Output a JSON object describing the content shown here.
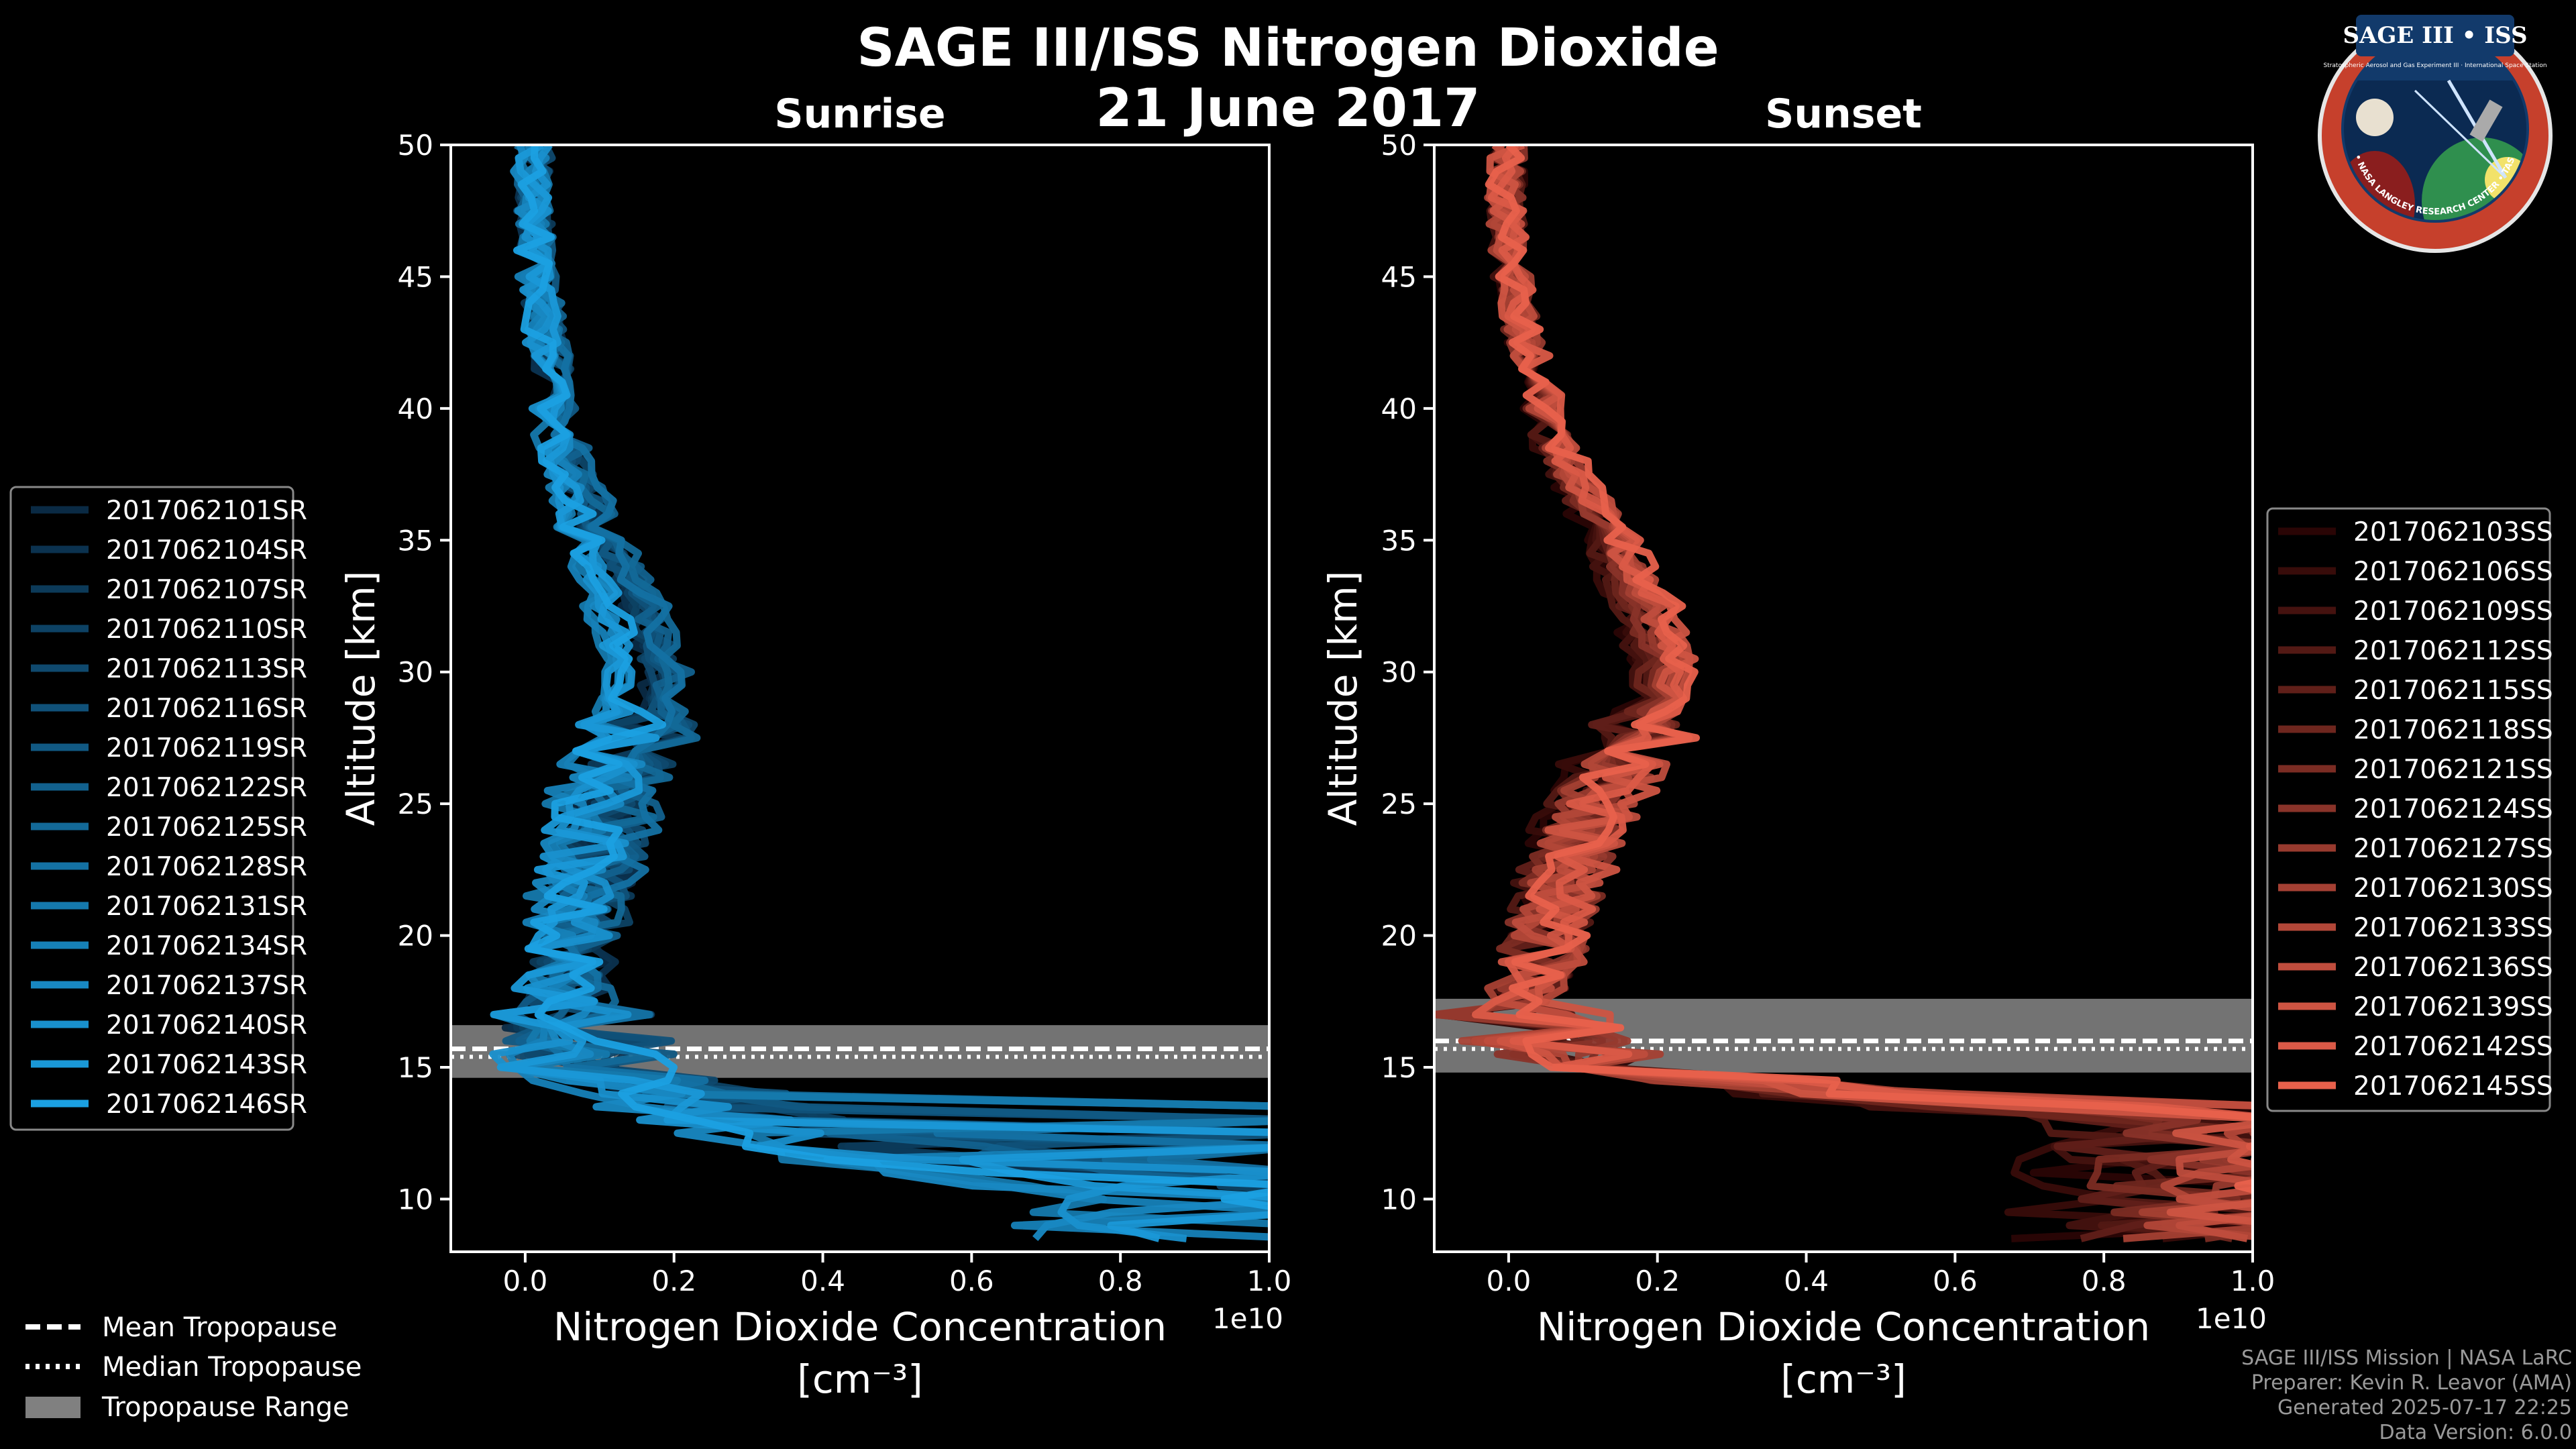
{
  "title": "SAGE III/ISS Nitrogen Dioxide",
  "date": "21 June 2017",
  "logo": {
    "name": "SAGE III • ISS",
    "subtitle": "Stratospheric Aerosol and Gas Experiment III · International Space Station",
    "ring_text": "BALL • NASA LANGLEY RESEARCH CENTER • TAS • ESA"
  },
  "credits": [
    "SAGE III/ISS Mission | NASA LaRC",
    "Preparer: Kevin R. Leavor (AMA)",
    "Generated 2025-07-17 22:25",
    "Data Version: 6.0.0"
  ],
  "tropopause_legend": [
    {
      "label": "Mean Tropopause",
      "style": "dashed"
    },
    {
      "label": "Median Tropopause",
      "style": "dotted"
    },
    {
      "label": "Tropopause Range",
      "style": "patch"
    }
  ],
  "chart_data": [
    {
      "type": "line",
      "panel": "Sunrise",
      "title": "Sunrise",
      "xlabel": "Nitrogen Dioxide Concentration",
      "xlabel_unit": "[cm⁻³]",
      "ylabel": "Altitude [km]",
      "xlim": [
        -0.1,
        1.0
      ],
      "ylim": [
        8,
        50
      ],
      "x_offset_label": "1e10",
      "x_ticks": [
        "0.0",
        "0.2",
        "0.4",
        "0.6",
        "0.8",
        "1.0"
      ],
      "y_ticks": [
        "10",
        "15",
        "20",
        "25",
        "30",
        "35",
        "40",
        "45",
        "50"
      ],
      "color_dark": "#0a2a44",
      "color_light": "#1ba0e2",
      "tropopause": {
        "mean": 15.7,
        "median": 15.6,
        "range": [
          14.6,
          16.6
        ]
      },
      "legend": [
        "2017062101SR",
        "2017062104SR",
        "2017062107SR",
        "2017062110SR",
        "2017062113SR",
        "2017062116SR",
        "2017062119SR",
        "2017062122SR",
        "2017062125SR",
        "2017062128SR",
        "2017062131SR",
        "2017062134SR",
        "2017062137SR",
        "2017062140SR",
        "2017062143SR",
        "2017062146SR"
      ],
      "profile": {
        "altitude": [
          50,
          48,
          46,
          44,
          42,
          40,
          38,
          36,
          34,
          32,
          30,
          29,
          28,
          26,
          24,
          22,
          20,
          18,
          17,
          16,
          15,
          14,
          13,
          12,
          11,
          10,
          9,
          8.5
        ],
        "value": [
          0.01,
          0.01,
          0.015,
          0.02,
          0.03,
          0.04,
          0.055,
          0.08,
          0.11,
          0.14,
          0.16,
          0.16,
          0.15,
          0.12,
          0.1,
          0.08,
          0.07,
          0.05,
          0.05,
          0.07,
          0.1,
          0.2,
          0.3,
          0.45,
          0.7,
          1.0,
          1.0,
          1.0
        ]
      }
    },
    {
      "type": "line",
      "panel": "Sunset",
      "title": "Sunset",
      "xlabel": "Nitrogen Dioxide Concentration",
      "xlabel_unit": "[cm⁻³]",
      "ylabel": "Altitude [km]",
      "xlim": [
        -0.1,
        1.0
      ],
      "ylim": [
        8,
        50
      ],
      "x_offset_label": "1e10",
      "x_ticks": [
        "0.0",
        "0.2",
        "0.4",
        "0.6",
        "0.8",
        "1.0"
      ],
      "y_ticks": [
        "10",
        "15",
        "20",
        "25",
        "30",
        "35",
        "40",
        "45",
        "50"
      ],
      "color_dark": "#2a0505",
      "color_light": "#e8614c",
      "tropopause": {
        "mean": 16.0,
        "median": 15.9,
        "range": [
          14.8,
          17.6
        ]
      },
      "legend": [
        "2017062103SS",
        "2017062106SS",
        "2017062109SS",
        "2017062112SS",
        "2017062115SS",
        "2017062118SS",
        "2017062121SS",
        "2017062124SS",
        "2017062127SS",
        "2017062130SS",
        "2017062133SS",
        "2017062136SS",
        "2017062139SS",
        "2017062142SS",
        "2017062145SS"
      ],
      "profile": {
        "altitude": [
          50,
          48,
          46,
          44,
          42,
          40,
          38,
          36,
          34,
          32,
          30,
          29,
          28,
          26,
          24,
          22,
          20,
          18,
          17,
          16,
          15,
          14,
          13,
          12,
          11,
          10,
          9,
          8.5
        ],
        "value": [
          0.0,
          -0.005,
          0.0,
          0.01,
          0.03,
          0.05,
          0.08,
          0.13,
          0.17,
          0.21,
          0.23,
          0.22,
          0.2,
          0.15,
          0.11,
          0.08,
          0.06,
          0.03,
          0.02,
          0.05,
          0.15,
          0.5,
          1.0,
          1.0,
          1.0,
          1.0,
          1.0,
          1.0
        ]
      }
    }
  ]
}
